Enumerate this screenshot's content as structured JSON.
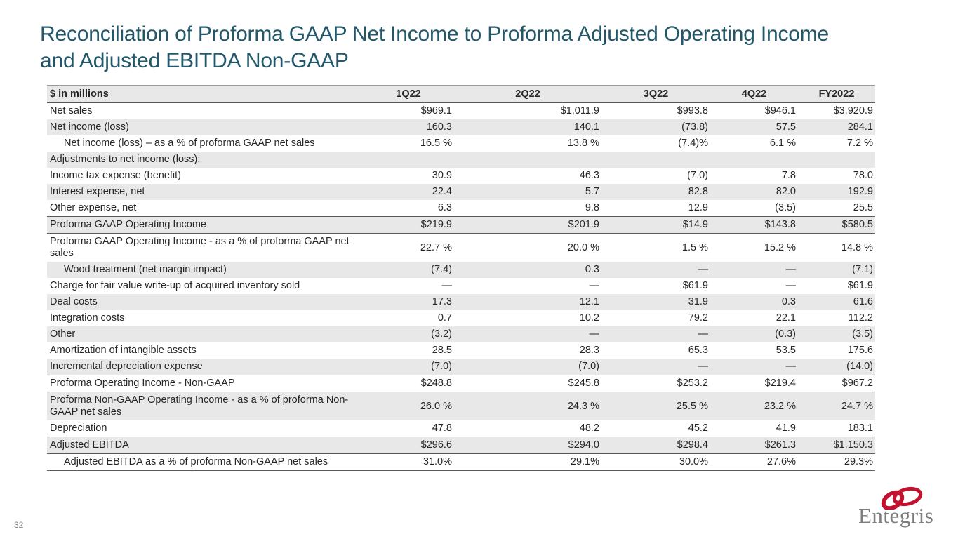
{
  "slide": {
    "title": "Reconciliation of Proforma GAAP Net Income to Proforma Adjusted Operating Income and Adjusted EBITDA Non-GAAP",
    "page_number": "32",
    "logo_text": "Entegris"
  },
  "colors": {
    "title_teal": "#23586B",
    "row_shade": "#e8e8e8",
    "rule_dark": "#595959",
    "logo_red": "#C3122F",
    "logo_gray": "#7d7d7d"
  },
  "table": {
    "columns": [
      "$ in millions",
      "1Q22",
      "2Q22",
      "3Q22",
      "4Q22",
      "FY2022"
    ],
    "rows": [
      {
        "label": "Net sales",
        "indent": false,
        "values": [
          "$969.1",
          "$1,011.9",
          "$993.8",
          "$946.1",
          "$3,920.9"
        ]
      },
      {
        "label": "Net income (loss)",
        "indent": false,
        "values": [
          "160.3",
          "140.1",
          "(73.8)",
          "57.5",
          "284.1"
        ]
      },
      {
        "label": "Net income (loss) – as a % of proforma GAAP net sales",
        "indent": true,
        "values": [
          "16.5 %",
          "13.8 %",
          "(7.4)%",
          "6.1 %",
          "7.2 %"
        ]
      },
      {
        "label": "Adjustments to net income (loss):",
        "indent": false,
        "values": [
          "",
          "",
          "",
          "",
          ""
        ]
      },
      {
        "label": "Income tax expense (benefit)",
        "indent": false,
        "values": [
          "30.9",
          "46.3",
          "(7.0)",
          "7.8",
          "78.0"
        ]
      },
      {
        "label": "Interest expense, net",
        "indent": false,
        "values": [
          "22.4",
          "5.7",
          "82.8",
          "82.0",
          "192.9"
        ]
      },
      {
        "label": "Other expense, net",
        "indent": false,
        "values": [
          "6.3",
          "9.8",
          "12.9",
          "(3.5)",
          "25.5"
        ]
      },
      {
        "label": "Proforma GAAP Operating Income",
        "indent": false,
        "rule_top": true,
        "rule_bottom": true,
        "values": [
          "$219.9",
          "$201.9",
          "$14.9",
          "$143.8",
          "$580.5"
        ]
      },
      {
        "label": "Proforma GAAP Operating Income - as a % of proforma GAAP net sales",
        "indent": false,
        "values": [
          "22.7 %",
          "20.0 %",
          "1.5 %",
          "15.2 %",
          "14.8 %"
        ]
      },
      {
        "label": "Wood treatment (net margin impact)",
        "indent": true,
        "values": [
          "(7.4)",
          "0.3",
          "—",
          "—",
          "(7.1)"
        ]
      },
      {
        "label": "Charge for fair value write-up of acquired inventory sold",
        "indent": false,
        "values": [
          "—",
          "—",
          "$61.9",
          "—",
          "$61.9"
        ]
      },
      {
        "label": "Deal costs",
        "indent": false,
        "values": [
          "17.3",
          "12.1",
          "31.9",
          "0.3",
          "61.6"
        ]
      },
      {
        "label": "Integration costs",
        "indent": false,
        "values": [
          "0.7",
          "10.2",
          "79.2",
          "22.1",
          "112.2"
        ]
      },
      {
        "label": "Other",
        "indent": false,
        "values": [
          "(3.2)",
          "—",
          "—",
          "(0.3)",
          "(3.5)"
        ]
      },
      {
        "label": "Amortization of intangible assets",
        "indent": false,
        "values": [
          "28.5",
          "28.3",
          "65.3",
          "53.5",
          "175.6"
        ]
      },
      {
        "label": "Incremental depreciation expense",
        "indent": false,
        "values": [
          "(7.0)",
          "(7.0)",
          "—",
          "—",
          "(14.0)"
        ]
      },
      {
        "label": "Proforma Operating Income - Non-GAAP",
        "indent": false,
        "rule_top": true,
        "rule_bottom": true,
        "values": [
          "$248.8",
          "$245.8",
          "$253.2",
          "$219.4",
          "$967.2"
        ]
      },
      {
        "label": "Proforma Non-GAAP Operating Income - as a % of proforma Non-GAAP net sales",
        "indent": false,
        "values": [
          "26.0 %",
          "24.3 %",
          "25.5 %",
          "23.2 %",
          "24.7 %"
        ]
      },
      {
        "label": "Depreciation",
        "indent": false,
        "values": [
          "47.8",
          "48.2",
          "45.2",
          "41.9",
          "183.1"
        ]
      },
      {
        "label": "Adjusted EBITDA",
        "indent": false,
        "rule_top": true,
        "rule_bottom": true,
        "values": [
          "$296.6",
          "$294.0",
          "$298.4",
          "$261.3",
          "$1,150.3"
        ]
      },
      {
        "label": "Adjusted EBITDA as a % of proforma Non-GAAP net sales",
        "indent": true,
        "rule_bottom": true,
        "values": [
          "31.0%",
          "29.1%",
          "30.0%",
          "27.6%",
          "29.3%"
        ]
      }
    ]
  }
}
